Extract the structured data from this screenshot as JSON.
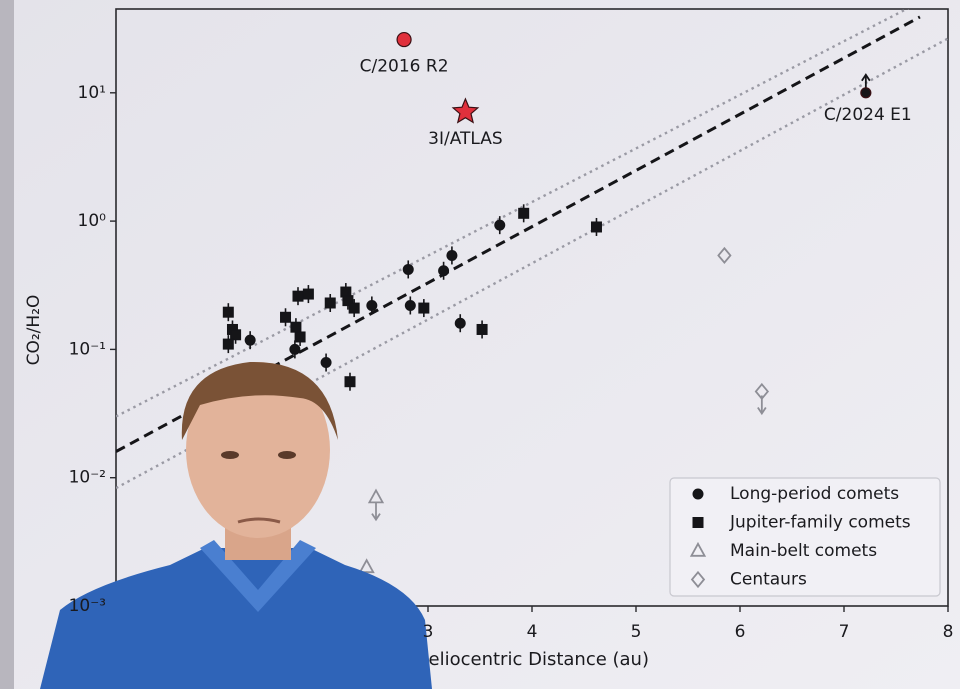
{
  "chart_data": {
    "type": "scatter",
    "ylabel": "CO₂/H₂O",
    "xlabel": "Heliocentric Distance (au)",
    "xlim": [
      0,
      8
    ],
    "xticks": [
      3,
      4,
      5,
      6,
      7,
      8
    ],
    "ylim": [
      0.001,
      45
    ],
    "ylog": true,
    "yticks": [
      {
        "value": 10,
        "label": "10¹"
      },
      {
        "value": 1,
        "label": "10⁰"
      },
      {
        "value": 0.1,
        "label": "10⁻¹"
      },
      {
        "value": 0.01,
        "label": "10⁻²"
      },
      {
        "value": 0.001,
        "label": "10⁻³"
      }
    ],
    "legend": "lower right",
    "series": [
      {
        "name": "Long-period comets",
        "color": "#151518",
        "marker": "circle",
        "filled": true,
        "x": [
          1.29,
          1.72,
          2.02,
          2.46,
          2.81,
          2.83,
          3.15,
          3.23,
          3.31,
          3.69
        ],
        "values": [
          0.118,
          0.1,
          0.079,
          0.22,
          0.42,
          0.22,
          0.41,
          0.54,
          0.16,
          0.93
        ]
      },
      {
        "name": "Jupiter-family comets",
        "color": "#151518",
        "marker": "square",
        "filled": true,
        "x": [
          1.08,
          1.12,
          1.15,
          1.08,
          1.63,
          1.73,
          1.77,
          1.75,
          1.85,
          2.06,
          2.21,
          2.23,
          2.29,
          2.25,
          2.96,
          3.52,
          3.92,
          4.62
        ],
        "values": [
          0.195,
          0.143,
          0.13,
          0.11,
          0.178,
          0.149,
          0.125,
          0.26,
          0.27,
          0.23,
          0.28,
          0.24,
          0.21,
          0.056,
          0.21,
          0.143,
          1.15,
          0.9
        ]
      },
      {
        "name": "Main-belt comets",
        "color": "#8e8e96",
        "marker": "triangle",
        "filled": false,
        "x": [
          2.5,
          2.41
        ],
        "values": [
          0.007,
          0.002
        ],
        "limits": [
          "upper",
          "upper"
        ]
      },
      {
        "name": "Centaurs",
        "color": "#8e8e96",
        "marker": "diamond",
        "filled": false,
        "x": [
          5.85,
          6.21
        ],
        "values": [
          0.54,
          0.047
        ],
        "limits": [
          null,
          "upper"
        ]
      }
    ],
    "highlights": [
      {
        "label": "C/2016 R2",
        "x": 2.77,
        "value": 26,
        "marker": "circle",
        "color": "#e0303c"
      },
      {
        "label": "3I/ATLAS",
        "x": 3.36,
        "value": 7.1,
        "marker": "star",
        "color": "#e0303c"
      },
      {
        "label": "C/2024 E1",
        "x": 7.21,
        "value": 10,
        "marker": "circle",
        "color": "#151518",
        "limit": "lower"
      }
    ],
    "lines": [
      {
        "style": "dashed",
        "color": "#151518",
        "x": [
          0,
          7.73
        ],
        "values": [
          0.016,
          39
        ]
      },
      {
        "style": "dotted",
        "color": "#9a9aa4",
        "x": [
          0,
          7.9
        ],
        "values": [
          0.03,
          60
        ]
      },
      {
        "style": "dotted",
        "color": "#9a9aa4",
        "x": [
          0,
          8
        ],
        "values": [
          0.0083,
          26.5
        ]
      }
    ]
  }
}
